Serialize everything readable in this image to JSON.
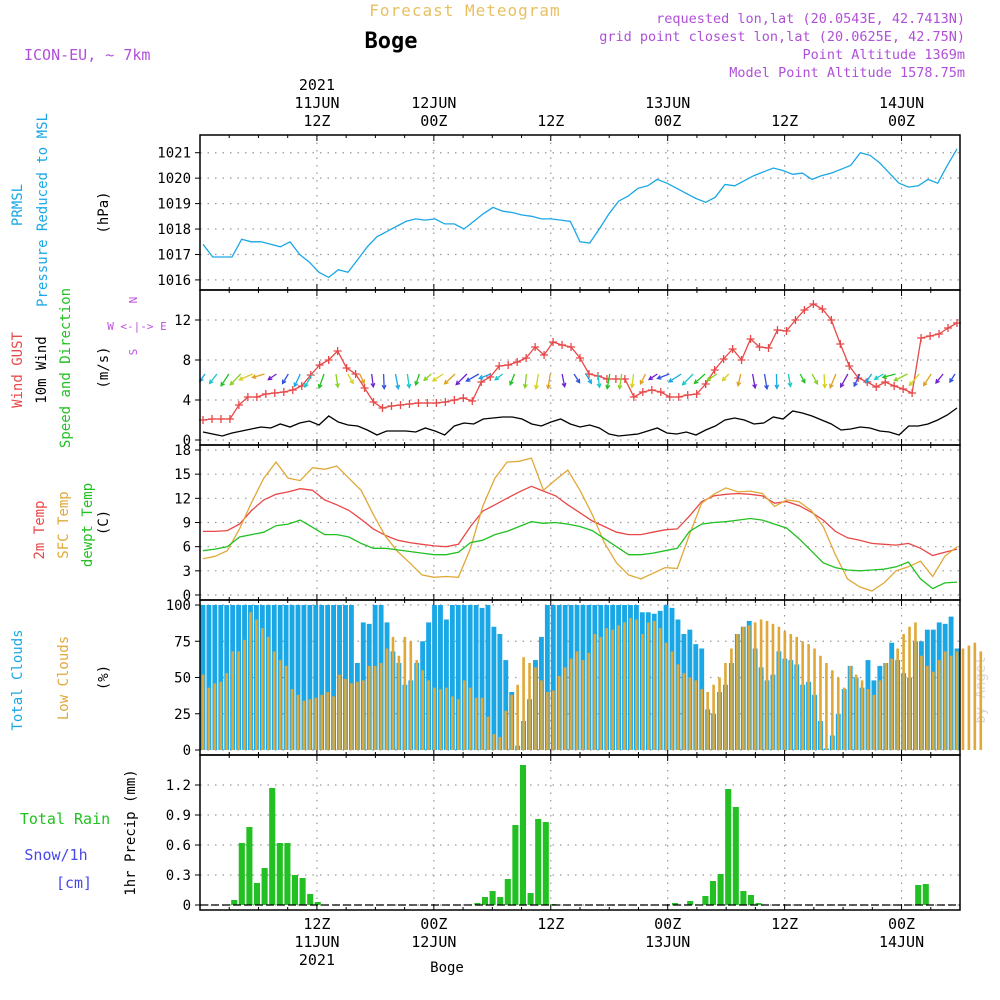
{
  "header": {
    "title": "Forecast Meteogram",
    "location": "Boge",
    "model": "ICON-EU, ~ 7km",
    "requested": "requested lon,lat (20.0543E, 42.7413N)",
    "grid_point": "grid point closest lon,lat (20.0625E, 42.75N)",
    "point_altitude": "Point Altitude 1369m",
    "model_altitude": "Model Point Altitude 1578.75m",
    "footer_location": "Boge",
    "credit": "by Angel"
  },
  "colors": {
    "pressure": "#1aa7e6",
    "gust": "#e84848",
    "wind": "#000000",
    "direction": "#22c022",
    "t2m": "#e84848",
    "sfc": "#e0a838",
    "dewpt": "#22c022",
    "total_clouds": "#1aa7e6",
    "low_clouds": "#e0a838",
    "rain": "#22c022",
    "snow": "#4848e8",
    "compass": "#c050e0",
    "header_purple": "#b050d8",
    "header_gold": "#e8c060"
  },
  "time_axis": {
    "top_labels": [
      {
        "t": 12,
        "lines": [
          "2021",
          "11JUN",
          "12Z"
        ]
      },
      {
        "t": 24,
        "lines": [
          "12JUN",
          "00Z"
        ]
      },
      {
        "t": 36,
        "lines": [
          "12Z"
        ]
      },
      {
        "t": 48,
        "lines": [
          "13JUN",
          "00Z"
        ]
      },
      {
        "t": 60,
        "lines": [
          "12Z"
        ]
      },
      {
        "t": 72,
        "lines": [
          "14JUN",
          "00Z"
        ]
      }
    ],
    "bottom_labels": [
      {
        "t": 12,
        "lines": [
          "12Z",
          "11JUN",
          "2021"
        ]
      },
      {
        "t": 24,
        "lines": [
          "00Z",
          "12JUN"
        ]
      },
      {
        "t": 36,
        "lines": [
          "12Z"
        ]
      },
      {
        "t": 48,
        "lines": [
          "00Z",
          "13JUN"
        ]
      },
      {
        "t": 60,
        "lines": [
          "12Z"
        ]
      },
      {
        "t": 72,
        "lines": [
          "00Z",
          "14JUN"
        ]
      }
    ]
  },
  "chart_data": [
    {
      "type": "line",
      "panel": "pressure",
      "ylabel_lines": [
        "PRMSL",
        "Pressure Reduced to MSL"
      ],
      "unit": "(hPa)",
      "ylim": [
        1015.8,
        1021.5
      ],
      "yticks": [
        1016,
        1017,
        1018,
        1019,
        1020,
        1021
      ],
      "series": [
        {
          "key": "pressure",
          "values": [
            1017.4,
            1016.9,
            1016.9,
            1016.9,
            1017.6,
            1017.5,
            1017.5,
            1017.4,
            1017.3,
            1017.5,
            1017.0,
            1016.7,
            1016.3,
            1016.1,
            1016.4,
            1016.3,
            1016.8,
            1017.3,
            1017.7,
            1017.9,
            1018.1,
            1018.3,
            1018.4,
            1018.35,
            1018.4,
            1018.2,
            1018.2,
            1018.0,
            1018.3,
            1018.6,
            1018.85,
            1018.7,
            1018.65,
            1018.55,
            1018.5,
            1018.4,
            1018.4,
            1018.35,
            1018.3,
            1017.5,
            1017.45,
            1018.0,
            1018.6,
            1019.1,
            1019.3,
            1019.6,
            1019.7,
            1019.95,
            1019.8,
            1019.6,
            1019.4,
            1019.2,
            1019.05,
            1019.25,
            1019.75,
            1019.7,
            1019.9,
            1020.1,
            1020.25,
            1020.4,
            1020.3,
            1020.15,
            1020.2,
            1019.95,
            1020.1,
            1020.2,
            1020.35,
            1020.5,
            1021.0,
            1020.9,
            1020.6,
            1020.2,
            1019.8,
            1019.65,
            1019.7,
            1019.95,
            1019.8,
            1020.5,
            1021.15
          ]
        }
      ]
    },
    {
      "type": "line",
      "panel": "wind",
      "ylabel_lines": [
        "Wind GUST",
        "10m Wind",
        "Speed and Direction"
      ],
      "unit": "(m/s)",
      "compass": [
        "N",
        "W <-|-> E",
        "S"
      ],
      "ylim": [
        0,
        14.5
      ],
      "yticks": [
        0,
        4,
        8,
        12
      ],
      "series": [
        {
          "key": "gust",
          "values": [
            2.0,
            2.1,
            2.1,
            2.1,
            3.5,
            4.3,
            4.3,
            4.6,
            4.7,
            4.8,
            5.0,
            5.4,
            6.5,
            7.5,
            8.0,
            8.9,
            7.2,
            6.6,
            5.2,
            3.8,
            3.2,
            3.4,
            3.5,
            3.6,
            3.7,
            3.7,
            3.7,
            3.8,
            4.0,
            4.2,
            3.9,
            5.8,
            6.3,
            7.4,
            7.5,
            7.8,
            8.2,
            9.3,
            8.5,
            9.8,
            9.5,
            9.3,
            8.2,
            6.6,
            6.4,
            6.1,
            6.1,
            6.1,
            4.3,
            4.8,
            5.0,
            4.8,
            4.3,
            4.3,
            4.5,
            4.6,
            5.6,
            7.0,
            8.1,
            9.1,
            8.0,
            10.1,
            9.3,
            9.2,
            11.0,
            10.9,
            12.0,
            13.0,
            13.6,
            13.1,
            12.0,
            9.6,
            7.4,
            6.2,
            5.8,
            5.3,
            5.8,
            5.4,
            5.1,
            4.7,
            10.2,
            10.4,
            10.6,
            11.2,
            11.7
          ]
        },
        {
          "key": "wind",
          "values": [
            0.8,
            0.6,
            0.4,
            0.7,
            0.9,
            1.1,
            1.3,
            1.2,
            1.6,
            1.3,
            1.7,
            1.9,
            1.5,
            2.4,
            1.8,
            1.5,
            1.4,
            1.0,
            0.5,
            0.9,
            0.9,
            0.9,
            0.8,
            1.2,
            0.9,
            0.5,
            1.4,
            1.7,
            1.6,
            2.1,
            2.2,
            2.3,
            2.3,
            2.1,
            1.6,
            1.4,
            1.8,
            2.1,
            1.6,
            1.3,
            1.5,
            1.2,
            0.6,
            0.4,
            0.5,
            0.6,
            0.9,
            1.2,
            0.7,
            0.6,
            0.8,
            0.5,
            1.0,
            1.4,
            2.0,
            2.2,
            2.0,
            1.6,
            1.7,
            2.3,
            2.1,
            2.9,
            2.7,
            2.4,
            2.0,
            1.6,
            1.0,
            1.1,
            1.3,
            1.2,
            0.9,
            0.8,
            0.5,
            1.4,
            1.4,
            1.6,
            2.0,
            2.5,
            3.2
          ]
        }
      ]
    },
    {
      "type": "line",
      "panel": "temperature",
      "ylabel_lines": [
        "2m Temp",
        "SFC Temp",
        "dewpt Temp"
      ],
      "unit": "(C)",
      "ylim": [
        0,
        18
      ],
      "yticks": [
        0,
        3,
        6,
        9,
        12,
        15,
        18
      ],
      "series": [
        {
          "key": "t2m",
          "values": [
            7.9,
            7.9,
            8.0,
            8.8,
            10.5,
            11.8,
            12.5,
            12.8,
            13.2,
            13.0,
            11.8,
            11.2,
            10.5,
            9.4,
            8.2,
            7.4,
            6.8,
            6.5,
            6.3,
            6.1,
            6.0,
            6.3,
            8.5,
            10.4,
            11.2,
            12.0,
            12.8,
            13.5,
            12.9,
            12.3,
            11.2,
            10.2,
            9.2,
            8.5,
            7.8,
            7.5,
            7.5,
            7.8,
            8.1,
            8.2,
            9.8,
            11.6,
            12.3,
            12.5,
            12.6,
            12.5,
            12.3,
            11.4,
            11.6,
            11.1,
            10.3,
            9.3,
            7.9,
            7.1,
            6.8,
            6.4,
            6.3,
            6.2,
            6.4,
            5.8,
            4.9,
            5.3,
            5.7
          ]
        },
        {
          "key": "sfc",
          "values": [
            4.5,
            4.8,
            5.5,
            8.2,
            11.5,
            14.5,
            16.5,
            14.5,
            14.2,
            15.8,
            15.6,
            16.0,
            14.5,
            13.0,
            10.0,
            7.3,
            5.4,
            4.0,
            2.5,
            2.2,
            2.3,
            2.2,
            5.8,
            11.0,
            14.5,
            16.5,
            16.6,
            17.0,
            13.0,
            14.3,
            15.5,
            13.0,
            10.0,
            6.5,
            4.0,
            2.5,
            2.0,
            2.7,
            3.4,
            3.3,
            7.5,
            11.4,
            12.5,
            13.3,
            12.8,
            12.9,
            12.6,
            11.0,
            11.8,
            11.6,
            10.5,
            8.5,
            5.0,
            2.0,
            1.0,
            0.5,
            1.5,
            3.0,
            3.5,
            4.2,
            2.3,
            4.8,
            6.0
          ]
        },
        {
          "key": "dewpt",
          "values": [
            5.5,
            5.7,
            6.0,
            7.2,
            7.5,
            7.8,
            8.6,
            8.8,
            9.3,
            8.4,
            7.5,
            7.5,
            7.2,
            6.4,
            5.8,
            5.8,
            5.6,
            5.4,
            5.2,
            5.0,
            5.0,
            5.3,
            6.5,
            6.8,
            7.5,
            7.9,
            8.5,
            9.1,
            8.9,
            9.0,
            8.8,
            8.5,
            8.0,
            7.0,
            6.0,
            5.0,
            5.0,
            5.2,
            5.5,
            5.8,
            7.9,
            8.8,
            9.0,
            9.1,
            9.3,
            9.5,
            9.3,
            8.8,
            8.3,
            7.0,
            5.5,
            4.0,
            3.4,
            3.1,
            3.0,
            3.1,
            3.2,
            3.5,
            4.1,
            2.0,
            0.8,
            1.5,
            1.6
          ]
        }
      ]
    },
    {
      "type": "bar",
      "panel": "clouds",
      "ylabel_lines": [
        "Total Clouds",
        "Low Clouds"
      ],
      "unit": "(%)",
      "ylim": [
        0,
        100
      ],
      "yticks": [
        0,
        25,
        50,
        75,
        100
      ],
      "series": [
        {
          "key": "total_clouds",
          "values": [
            100,
            100,
            100,
            100,
            100,
            100,
            100,
            100,
            100,
            100,
            100,
            100,
            100,
            100,
            100,
            100,
            100,
            100,
            100,
            100,
            100,
            100,
            100,
            100,
            100,
            100,
            60,
            88,
            87,
            100,
            100,
            88,
            68,
            60,
            45,
            48,
            60,
            75,
            88,
            100,
            100,
            90,
            100,
            100,
            100,
            100,
            100,
            98,
            100,
            85,
            80,
            62,
            40,
            3,
            20,
            35,
            62,
            78,
            100,
            100,
            100,
            100,
            100,
            100,
            100,
            100,
            100,
            100,
            100,
            100,
            100,
            100,
            100,
            100,
            95,
            95,
            94,
            96,
            100,
            98,
            90,
            80,
            83,
            73,
            70,
            28,
            25,
            40,
            45,
            60,
            80,
            85,
            89,
            70,
            57,
            48,
            52,
            68,
            63,
            62,
            59,
            45,
            47,
            38,
            20,
            1,
            10,
            25,
            42,
            58,
            50,
            43,
            62,
            48,
            58,
            60,
            74,
            62,
            53,
            50,
            75,
            75,
            83,
            83,
            88,
            87,
            92,
            70
          ]
        },
        {
          "key": "low_clouds",
          "values": [
            52,
            43,
            46,
            47,
            53,
            68,
            68,
            76,
            95,
            90,
            84,
            78,
            68,
            62,
            58,
            42,
            38,
            34,
            35,
            36,
            38,
            40,
            37,
            52,
            49,
            46,
            47,
            48,
            58,
            58,
            60,
            70,
            78,
            65,
            78,
            75,
            62,
            55,
            48,
            43,
            42,
            43,
            37,
            35,
            48,
            43,
            36,
            36,
            23,
            11,
            9,
            27,
            38,
            45,
            64,
            60,
            57,
            48,
            40,
            41,
            51,
            57,
            63,
            68,
            62,
            67,
            80,
            78,
            84,
            83,
            86,
            88,
            91,
            90,
            80,
            88,
            89,
            84,
            74,
            68,
            59,
            53,
            50,
            48,
            42,
            40,
            45,
            50,
            60,
            70,
            80,
            85,
            86,
            88,
            90,
            89,
            87,
            85,
            82,
            80,
            78,
            75,
            73,
            70,
            65,
            60,
            55,
            50,
            43,
            58,
            52,
            48,
            42,
            38,
            48,
            60,
            63,
            70,
            80,
            85,
            88,
            65,
            58,
            54,
            62,
            68,
            65,
            68,
            70,
            72,
            74,
            68
          ]
        }
      ]
    },
    {
      "type": "bar",
      "panel": "precip",
      "ylabel_lines": [
        "Total Rain",
        "Snow/1h",
        "[cm]"
      ],
      "unit": "1hr Precip (mm)",
      "ylim": [
        0,
        1.45
      ],
      "yticks": [
        0,
        0.3,
        0.6,
        0.9,
        1.2
      ],
      "series": [
        {
          "key": "rain",
          "values": [
            0,
            0,
            0,
            0,
            0.05,
            0.62,
            0.78,
            0.22,
            0.37,
            1.17,
            0.62,
            0.62,
            0.3,
            0.27,
            0.11,
            0.03,
            0,
            0,
            0,
            0,
            0,
            0,
            0,
            0,
            0,
            0,
            0,
            0,
            0,
            0,
            0,
            0,
            0,
            0,
            0,
            0,
            0.02,
            0.08,
            0.14,
            0.08,
            0.26,
            0.8,
            1.4,
            0.12,
            0.86,
            0.83,
            0.01,
            0,
            0,
            0,
            0,
            0,
            0,
            0,
            0,
            0,
            0,
            0,
            0,
            0,
            0,
            0,
            0.02,
            0,
            0.04,
            0,
            0.09,
            0.24,
            0.31,
            1.16,
            0.98,
            0.14,
            0.1,
            0.02,
            0,
            0,
            0,
            0,
            0,
            0,
            0,
            0,
            0,
            0,
            0,
            0,
            0,
            0,
            0,
            0,
            0,
            0,
            0,
            0,
            0.2,
            0.21,
            0,
            0,
            0,
            0
          ]
        }
      ]
    }
  ]
}
